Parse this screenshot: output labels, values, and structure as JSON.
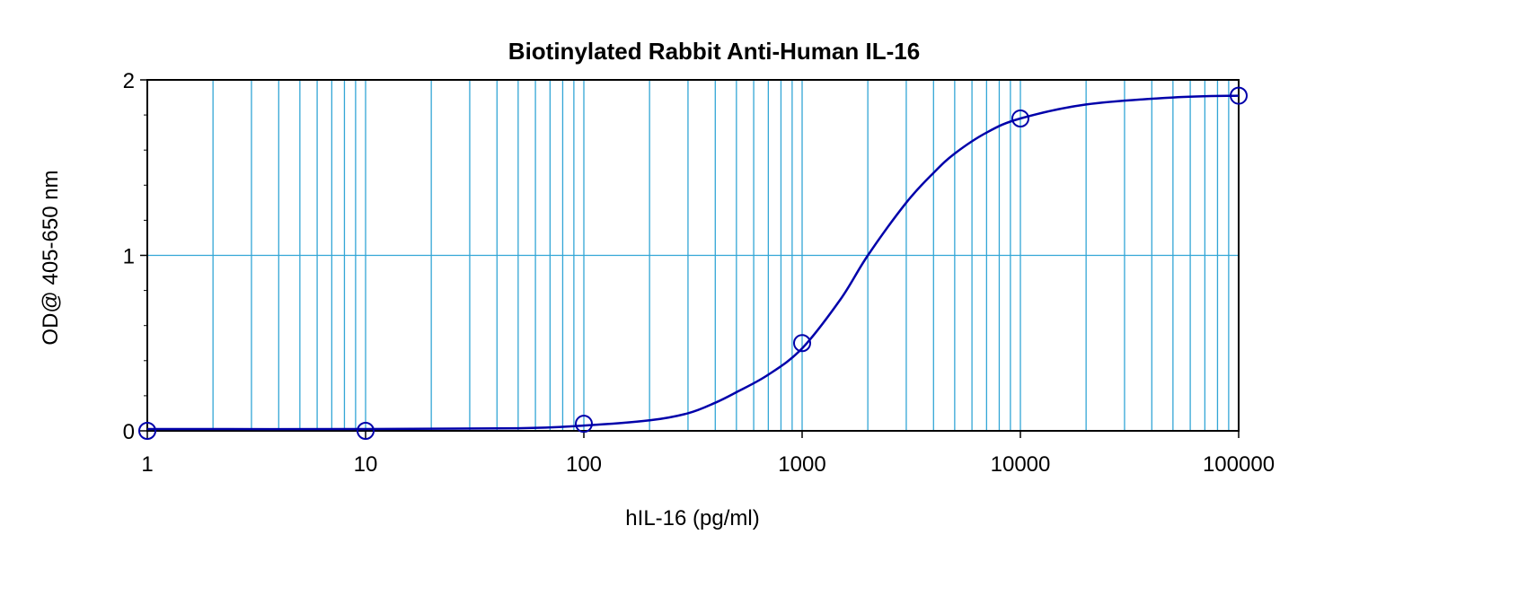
{
  "chart_data": {
    "type": "scatter",
    "title": "Biotinylated Rabbit Anti-Human IL-16",
    "xlabel": "hIL-16 (pg/ml)",
    "ylabel": "OD@ 405-650 nm",
    "x_scale": "log",
    "xlim": [
      1,
      100000
    ],
    "ylim": [
      0,
      2
    ],
    "x_ticks": [
      1,
      10,
      100,
      1000,
      10000,
      100000
    ],
    "x_tick_labels": [
      "1",
      "10",
      "100",
      "1000",
      "10000",
      "100000"
    ],
    "y_ticks": [
      0,
      1,
      2
    ],
    "y_tick_labels": [
      "0",
      "1",
      "2"
    ],
    "grid": true,
    "points": {
      "x": [
        1,
        10,
        100,
        1000,
        10000,
        100000
      ],
      "y": [
        0.0,
        0.0,
        0.04,
        0.5,
        1.78,
        1.91
      ]
    },
    "fit_curve": {
      "x": [
        1,
        10,
        50,
        100,
        200,
        300,
        400,
        500,
        700,
        1000,
        1500,
        2000,
        3000,
        4000,
        5000,
        7000,
        10000,
        20000,
        50000,
        100000
      ],
      "y": [
        0.01,
        0.01,
        0.015,
        0.03,
        0.06,
        0.1,
        0.16,
        0.22,
        0.32,
        0.47,
        0.75,
        1.0,
        1.3,
        1.47,
        1.58,
        1.7,
        1.78,
        1.86,
        1.9,
        1.91
      ]
    },
    "colors": {
      "series": "#0000aa",
      "grid": "#33a6d6",
      "frame": "#000000"
    }
  }
}
